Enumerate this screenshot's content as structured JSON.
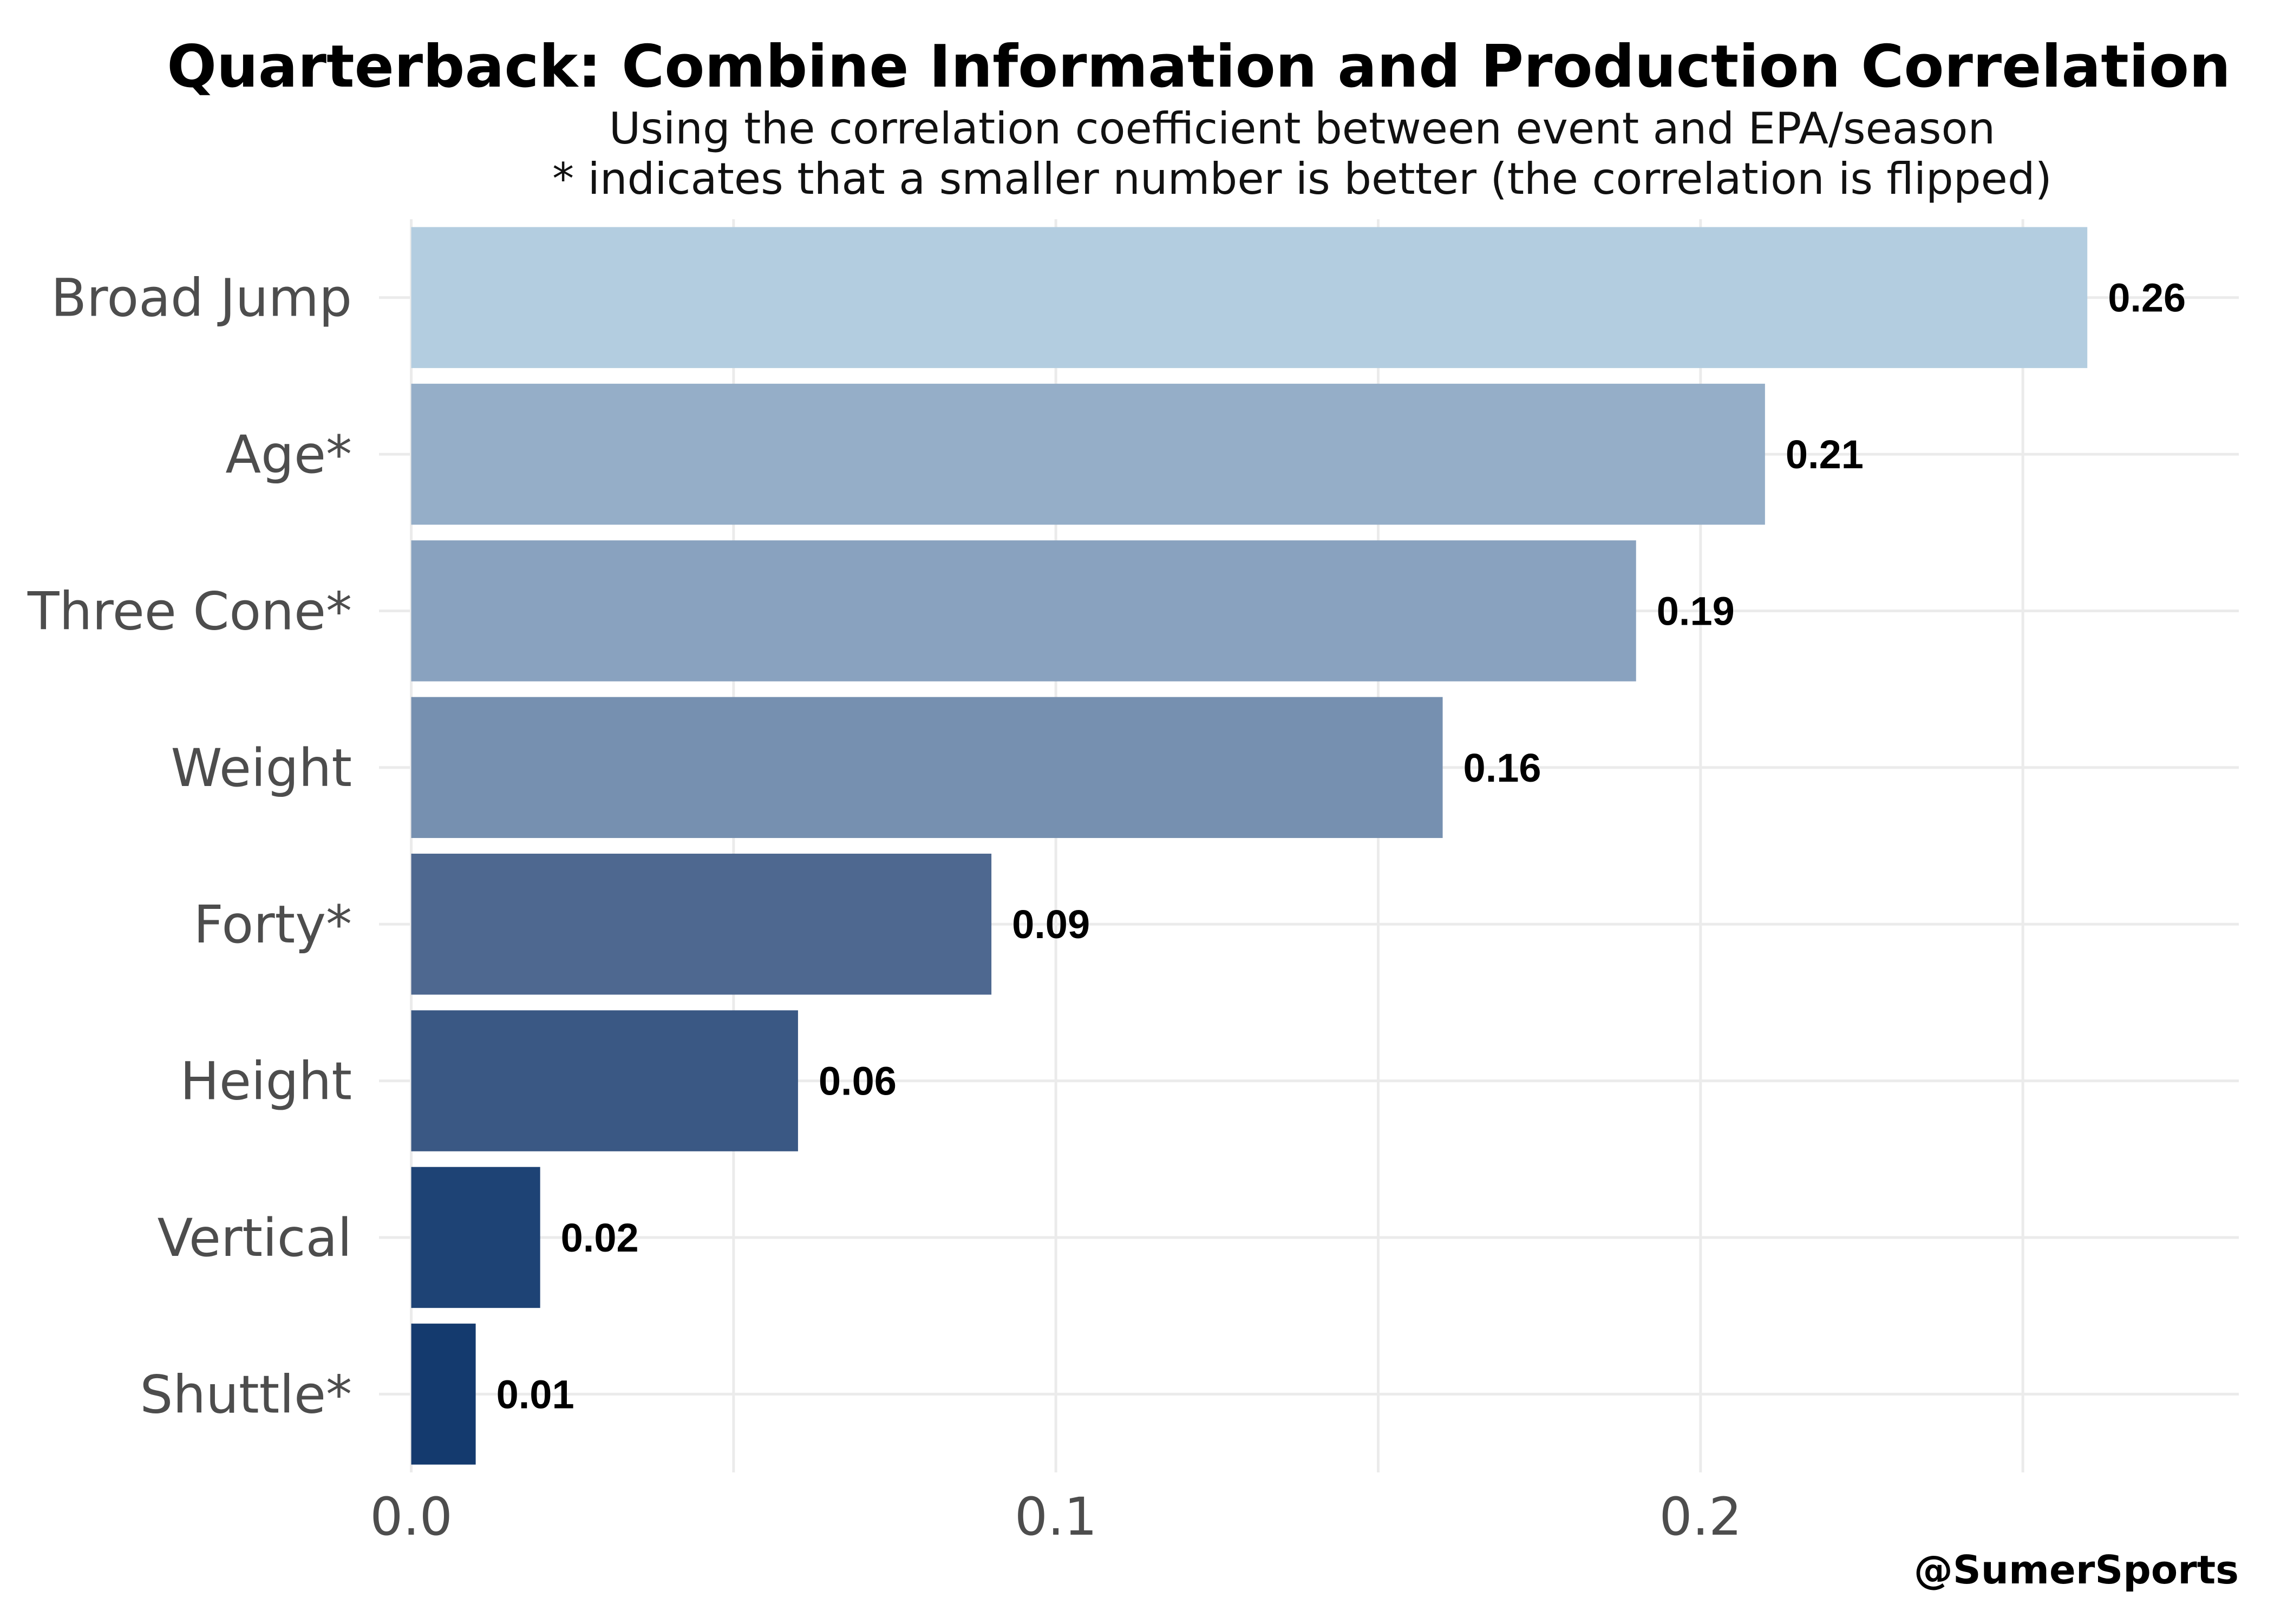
{
  "chart_data": {
    "type": "bar",
    "orientation": "horizontal",
    "title": "Quarterback: Combine Information and Production Correlation",
    "subtitle": [
      "Using the correlation coefficient between event and EPA/season",
      "* indicates that a smaller number is better (the correlation is flipped)"
    ],
    "caption": "@SumerSports",
    "categories": [
      "Broad Jump",
      "Age*",
      "Three Cone*",
      "Weight",
      "Forty*",
      "Height",
      "Vertical",
      "Shuttle*"
    ],
    "values": [
      0.26,
      0.21,
      0.19,
      0.16,
      0.09,
      0.06,
      0.02,
      0.01
    ],
    "value_labels": [
      "0.26",
      "0.21",
      "0.19",
      "0.16",
      "0.09",
      "0.06",
      "0.02",
      "0.01"
    ],
    "bar_colors": [
      "#b3cde0",
      "#95aec8",
      "#89a2bf",
      "#7690b0",
      "#4e6890",
      "#3a5884",
      "#1e4375",
      "#143a6e"
    ],
    "x_ticks": [
      0.0,
      0.1,
      0.2
    ],
    "x_tick_labels": [
      "0.0",
      "0.1",
      "0.2"
    ],
    "xlim": [
      -0.005,
      0.2835
    ],
    "grid": true,
    "legend": "none"
  }
}
